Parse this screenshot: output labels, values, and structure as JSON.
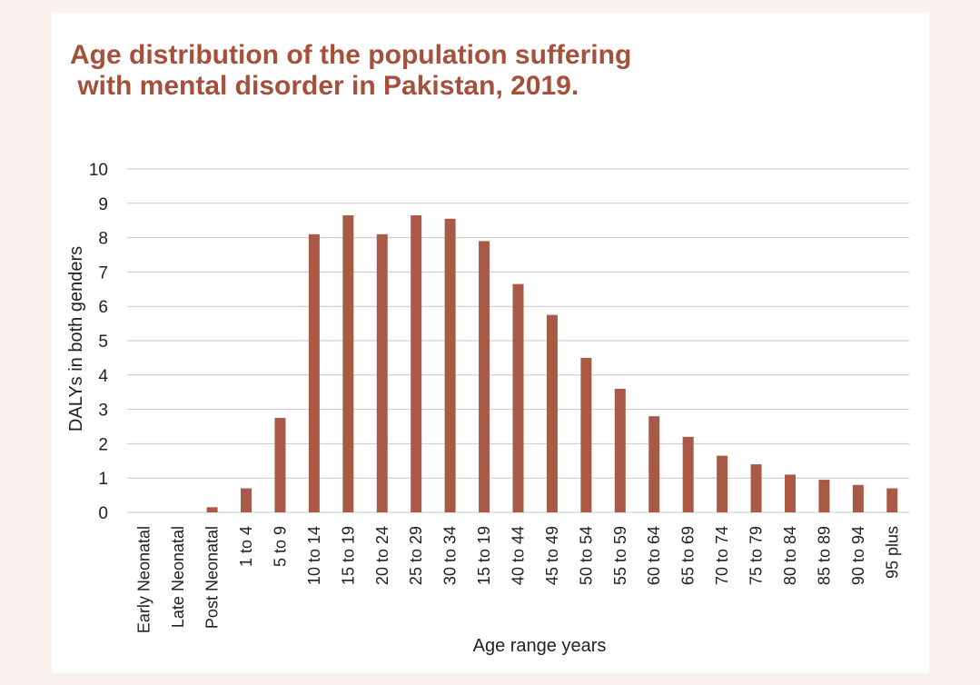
{
  "colors": {
    "bar": "#a85a47",
    "title": "#a4503b",
    "grid": "#c8c8c8",
    "background": "#f8f1ee"
  },
  "chart_data": {
    "type": "bar",
    "title": "Age distribution of the population suffering\n with mental disorder in Pakistan, 2019.",
    "xlabel": "Age range years",
    "ylabel": "DALYs in both genders",
    "ylim": [
      0,
      10
    ],
    "yticks": [
      0,
      1,
      2,
      3,
      4,
      5,
      6,
      7,
      8,
      9,
      10
    ],
    "grid": true,
    "categories": [
      "Early Neonatal",
      "Late Neonatal",
      "Post Neonatal",
      "1 to 4",
      "5 to 9",
      "10 to 14",
      "15 to 19",
      "20 to 24",
      "25 to 29",
      "30 to 34",
      "15 to 19",
      "40 to 44",
      "45 to 49",
      "50 to 54",
      "55 to 59",
      "60 to 64",
      "65 to 69",
      "70 to 74",
      "75 to 79",
      "80 to 84",
      "85 to 89",
      "90 to 94",
      "95 plus"
    ],
    "values": [
      0,
      0,
      0.15,
      0.7,
      2.75,
      8.1,
      8.65,
      8.1,
      8.65,
      8.55,
      7.9,
      6.65,
      5.75,
      4.5,
      3.6,
      2.8,
      2.2,
      1.65,
      1.4,
      1.1,
      0.95,
      0.8,
      0.7
    ]
  }
}
